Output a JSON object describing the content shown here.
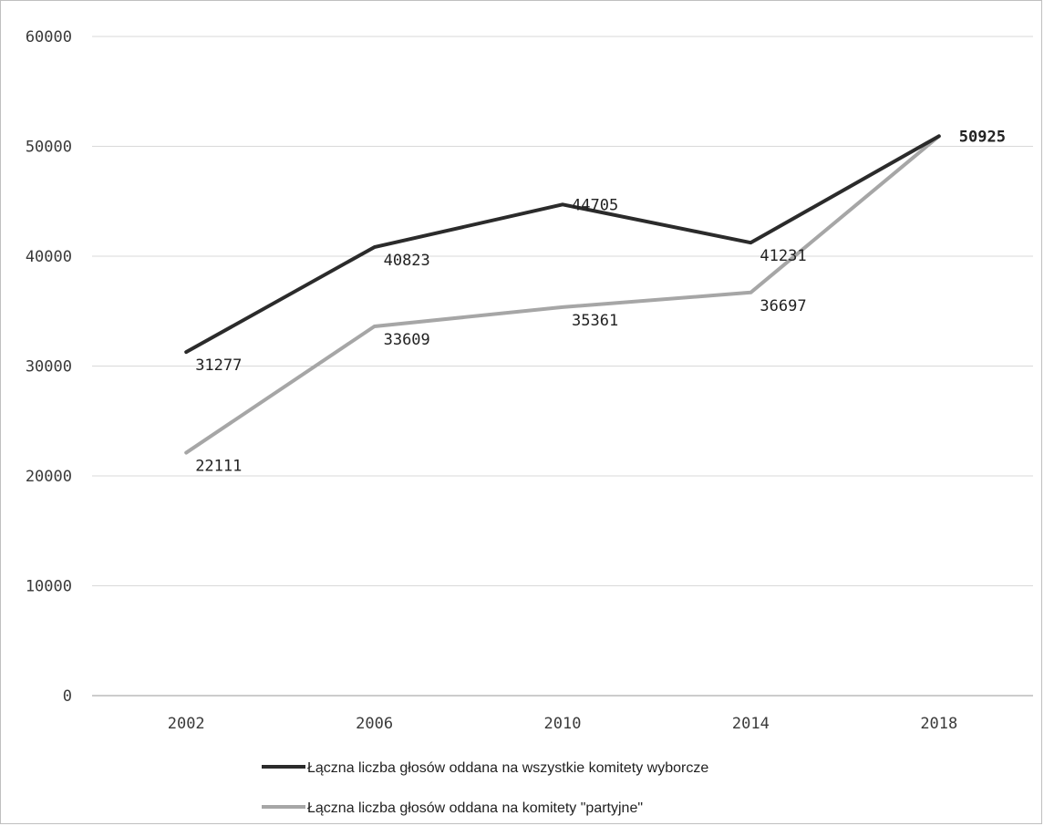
{
  "chart_data": {
    "type": "line",
    "categories": [
      "2002",
      "2006",
      "2010",
      "2014",
      "2018"
    ],
    "ylim": [
      0,
      60000
    ],
    "yticks": [
      "0",
      "10000",
      "20000",
      "30000",
      "40000",
      "50000",
      "60000"
    ],
    "grid": true,
    "legend_position": "bottom",
    "series": [
      {
        "name": "Łączna liczba głosów oddana na wszystkie komitety wyborcze",
        "color": "#2b2b2b",
        "values": [
          31277,
          40823,
          44705,
          41231,
          50925
        ],
        "labels": [
          "31277",
          "40823",
          "44705",
          "41231",
          "50925"
        ]
      },
      {
        "name": "Łączna liczba głosów oddana na komitety \"partyjne\"",
        "color": "#a6a6a6",
        "values": [
          22111,
          33609,
          35361,
          36697,
          50925
        ],
        "labels": [
          "22111",
          "33609",
          "35361",
          "36697",
          ""
        ]
      }
    ]
  }
}
